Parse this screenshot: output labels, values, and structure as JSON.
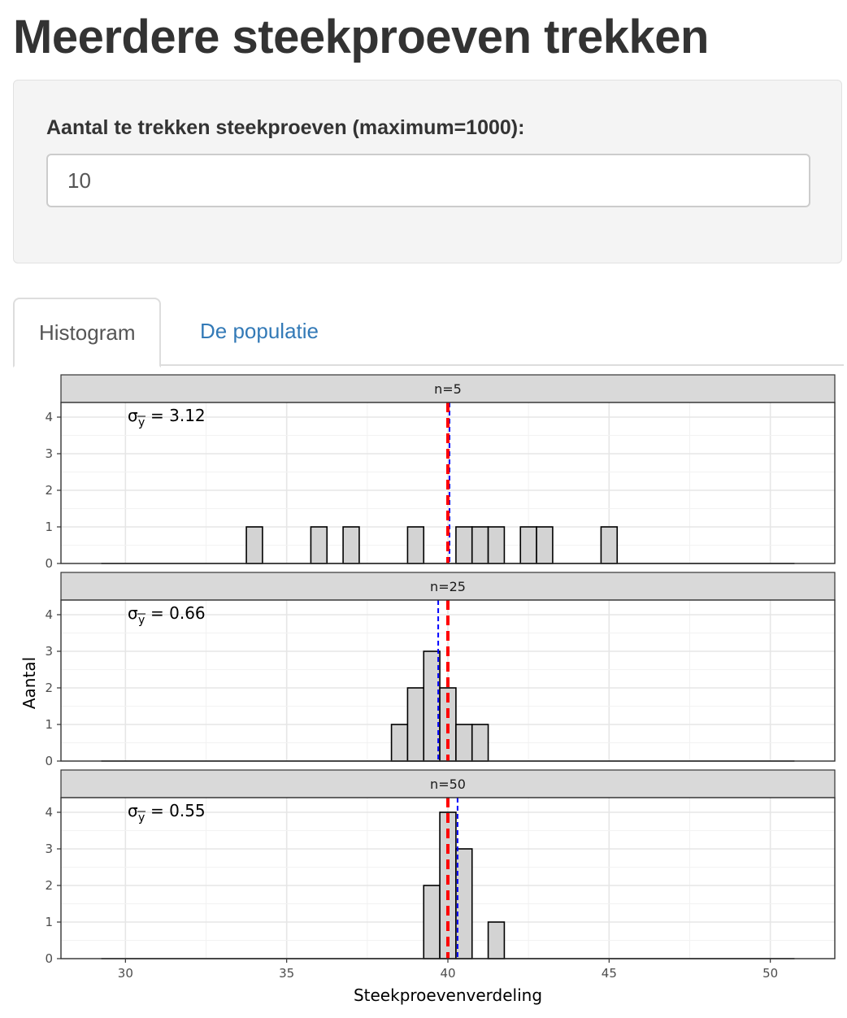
{
  "page": {
    "title": "Meerdere steekproeven trekken"
  },
  "input_panel": {
    "label": "Aantal te trekken steekproeven (maximum=1000):",
    "value": "10"
  },
  "tabs": [
    {
      "label": "Histogram",
      "active": true
    },
    {
      "label": "De populatie",
      "active": false
    }
  ],
  "colors": {
    "bar_fill": "#d3d3d3",
    "bar_stroke": "#000000",
    "pop_mean_line": "#ff0000",
    "sample_mean_line": "#0000ff",
    "strip_fill": "#d9d9d9",
    "tab_link": "#337ab7"
  },
  "chart_data": {
    "type": "bar",
    "xlabel": "Steekproevenverdeling",
    "ylabel": "Aantal",
    "xlim": [
      28,
      52
    ],
    "ylim": [
      0,
      4.4
    ],
    "xticks": [
      30,
      35,
      40,
      45,
      50
    ],
    "yticks": [
      0,
      1,
      2,
      3,
      4
    ],
    "bin_width": 0.5,
    "grid": true,
    "population_mean": 40,
    "panels": [
      {
        "strip": "n=5",
        "sigma_label": "σ",
        "sigma_subscript": "y",
        "sigma_value": "= 3.12",
        "sample_mean": 40.05,
        "bins": [
          [
            34,
            1
          ],
          [
            36,
            1
          ],
          [
            37,
            1
          ],
          [
            39,
            1
          ],
          [
            40.5,
            1
          ],
          [
            41,
            1
          ],
          [
            41.5,
            1
          ],
          [
            42.5,
            1
          ],
          [
            43,
            1
          ],
          [
            45,
            1
          ]
        ]
      },
      {
        "strip": "n=25",
        "sigma_label": "σ",
        "sigma_subscript": "y",
        "sigma_value": "= 0.66",
        "sample_mean": 39.7,
        "bins": [
          [
            38.5,
            1
          ],
          [
            39,
            2
          ],
          [
            39.5,
            3
          ],
          [
            40,
            2
          ],
          [
            40.5,
            1
          ],
          [
            41,
            1
          ]
        ]
      },
      {
        "strip": "n=50",
        "sigma_label": "σ",
        "sigma_subscript": "y",
        "sigma_value": "= 0.55",
        "sample_mean": 40.3,
        "bins": [
          [
            39.5,
            2
          ],
          [
            40,
            4
          ],
          [
            40.5,
            3
          ],
          [
            41.5,
            1
          ]
        ]
      }
    ]
  }
}
